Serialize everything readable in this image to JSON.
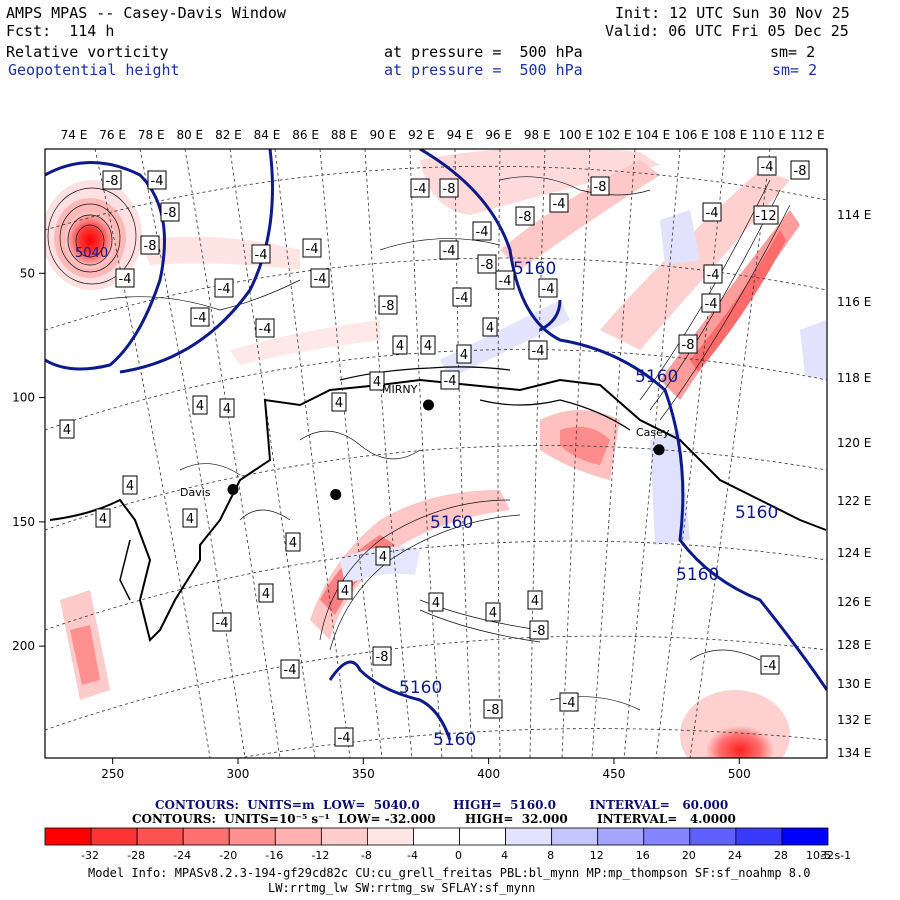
{
  "header": {
    "title": "AMPS MPAS -- Casey-Davis Window",
    "fcst": "Fcst:  114 h",
    "init": "Init: 12 UTC Sun 30 Nov 25",
    "valid": "Valid: 06 UTC Fri 05 Dec 25",
    "field1_name": "Relative vorticity",
    "field1_level": "at pressure =  500 hPa",
    "field1_sm": "sm= 2",
    "field2_name": "Geopotential height",
    "field2_level": "at pressure =  500 hPa",
    "field2_sm": "sm= 2"
  },
  "colors": {
    "height_contour": "#0d1a8c",
    "frame": "#000000"
  },
  "chart_data": {
    "type": "heatmap",
    "title": "Relative vorticity and Geopotential height at 500 hPa",
    "x_ticks": [
      "250",
      "300",
      "350",
      "400",
      "450",
      "500"
    ],
    "x_tick_values": [
      250,
      300,
      350,
      400,
      450,
      500
    ],
    "xlim": [
      223,
      535
    ],
    "y_ticks": [
      "50",
      "100",
      "150",
      "200"
    ],
    "y_tick_values": [
      50,
      100,
      150,
      200
    ],
    "ylim": [
      0,
      245
    ],
    "top_lon_labels": [
      "74 E",
      "76 E",
      "78 E",
      "80 E",
      "82 E",
      "84 E",
      "86 E",
      "88 E",
      "90 E",
      "92 E",
      "94 E",
      "96 E",
      "98 E",
      "100 E",
      "102 E",
      "104 E",
      "106 E",
      "108 E",
      "110 E",
      "112 E"
    ],
    "right_lon_labels": [
      "114 E",
      "116 E",
      "118 E",
      "120 E",
      "122 E",
      "124 E",
      "126 E",
      "128 E",
      "130 E",
      "132 E",
      "134 E"
    ],
    "height_contour_labels": [
      "5040",
      "5160",
      "5160",
      "5160",
      "5160",
      "5160",
      "5160",
      "5160"
    ],
    "vorticity_box_labels": [
      "-8",
      "-4",
      "-4",
      "-8",
      "-12",
      "-8",
      "-4",
      "-8",
      "-8",
      "-4",
      "-4",
      "-4",
      "-4",
      "-8",
      "-4",
      "-4",
      "-4",
      "-4",
      "-4",
      "-8",
      "-4",
      "-4",
      "-4",
      "-4",
      "-8",
      "-4",
      "-4",
      "-8",
      "-4",
      "-8",
      "-4",
      "-4",
      "4",
      "4",
      "4",
      "4",
      "4",
      "4",
      "4",
      "4",
      "4",
      "4",
      "4",
      "4",
      "4",
      "4",
      "4",
      "4",
      "4",
      "4",
      "4",
      "-8",
      "-8",
      "-4",
      "-4",
      "-8",
      "-4",
      "-4",
      "-4"
    ],
    "stations": [
      {
        "name": "Davis",
        "x": 298,
        "y": 137
      },
      {
        "name": "",
        "x": 339,
        "y": 139
      },
      {
        "name": "",
        "x": 376,
        "y": 103
      },
      {
        "name": "Casey",
        "x": 468,
        "y": 121
      }
    ],
    "place_labels": [
      "Davis",
      "MIRNY",
      "Casey"
    ],
    "contours": {
      "height": {
        "units": "m",
        "low": "5040.0",
        "high": "5160.0",
        "interval": "60.000"
      },
      "vorticity": {
        "units": "10⁻⁵ s⁻¹",
        "low": "-32.000",
        "high": "32.000",
        "interval": "4.0000"
      }
    },
    "colorbar": {
      "ticks": [
        "-32",
        "-28",
        "-24",
        "-20",
        "-16",
        "-12",
        "-8",
        "-4",
        "0",
        "4",
        "8",
        "12",
        "16",
        "20",
        "24",
        "28",
        "32"
      ],
      "unit_label": "10-5 s-1",
      "colors": [
        "#ff0000",
        "#ff3333",
        "#ff5252",
        "#ff7070",
        "#ff9090",
        "#ffb0b0",
        "#ffcccc",
        "#ffe6e6",
        "#ffffff",
        "#ffffff",
        "#e3e3ff",
        "#c5c5ff",
        "#a5a5ff",
        "#8585ff",
        "#6060ff",
        "#3a3aff",
        "#0000ff"
      ]
    }
  },
  "contour_text": {
    "line1": "CONTOURS:  UNITS=m  LOW=  5040.0        HIGH=  5160.0        INTERVAL=   60.000",
    "line2": "CONTOURS:  UNITS=10⁻⁵ s⁻¹  LOW= -32.000       HIGH=  32.000       INTERVAL=   4.0000"
  },
  "model_info": {
    "line1": "Model Info: MPASv8.2.3-194-gf29cd82c CU:cu_grell_freitas PBL:bl_mynn MP:mp_thompson SF:sf_noahmp 8.0",
    "line2": "LW:rrtmg_lw SW:rrtmg_sw SFLAY:sf_mynn"
  }
}
